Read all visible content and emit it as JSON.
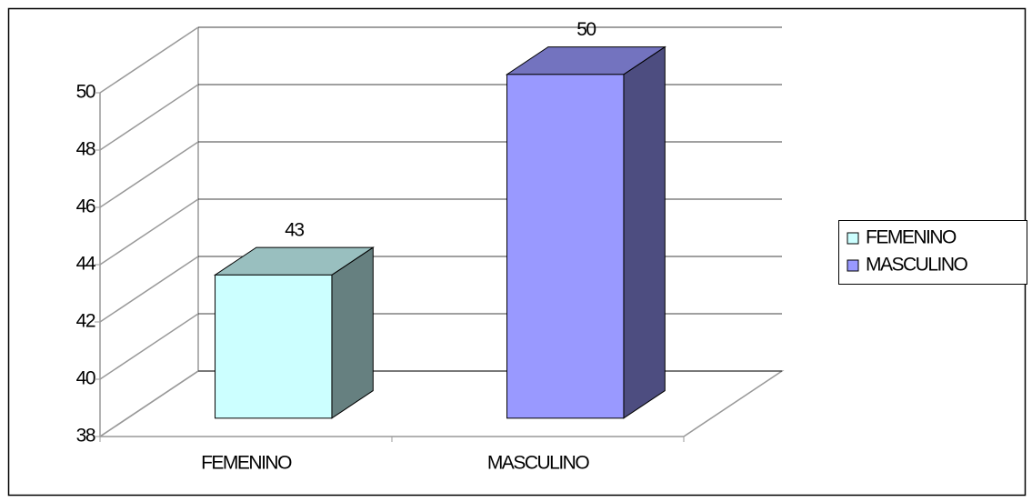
{
  "chart_data": {
    "type": "bar3d",
    "categories": [
      "FEMENINO",
      "MASCULINO"
    ],
    "values": [
      43,
      50
    ],
    "colors": [
      "#ccffff",
      "#9999ff"
    ],
    "ylim": [
      38,
      50
    ],
    "yticks": [
      38,
      40,
      42,
      44,
      46,
      48,
      50
    ],
    "grid": true,
    "legend": "right"
  }
}
